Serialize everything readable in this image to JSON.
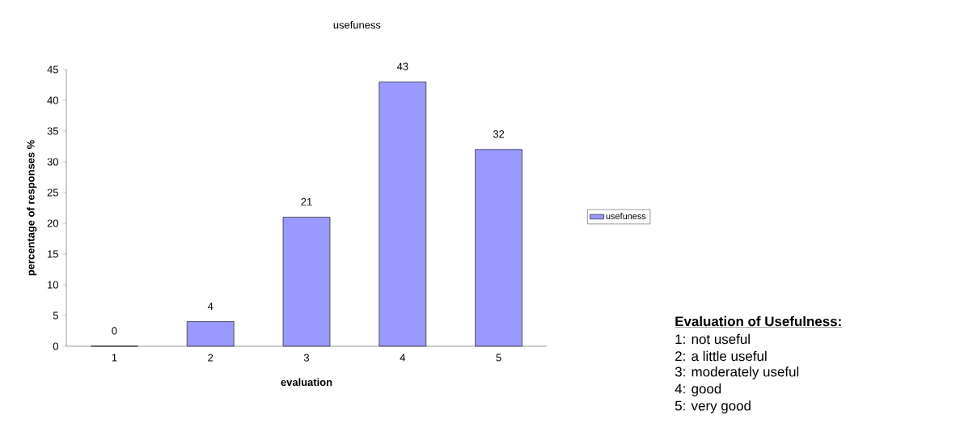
{
  "chart_data": {
    "type": "bar",
    "title": "usefuness",
    "xlabel": "evaluation",
    "ylabel": "percentage of responses %",
    "categories": [
      "1",
      "2",
      "3",
      "4",
      "5"
    ],
    "series": [
      {
        "name": "usefuness",
        "color": "#9999ff",
        "values": [
          0,
          4,
          21,
          43,
          32
        ]
      }
    ],
    "ylim": [
      0,
      45
    ],
    "yticks": [
      0,
      5,
      10,
      15,
      20,
      25,
      30,
      35,
      40,
      45
    ],
    "data_labels": true,
    "legend": "right",
    "grid": false,
    "annotations": [
      "Evaluation of Usefulness:",
      "1: not useful",
      "2: a little useful",
      "3: moderately useful",
      "4: good",
      "5: very good"
    ]
  }
}
